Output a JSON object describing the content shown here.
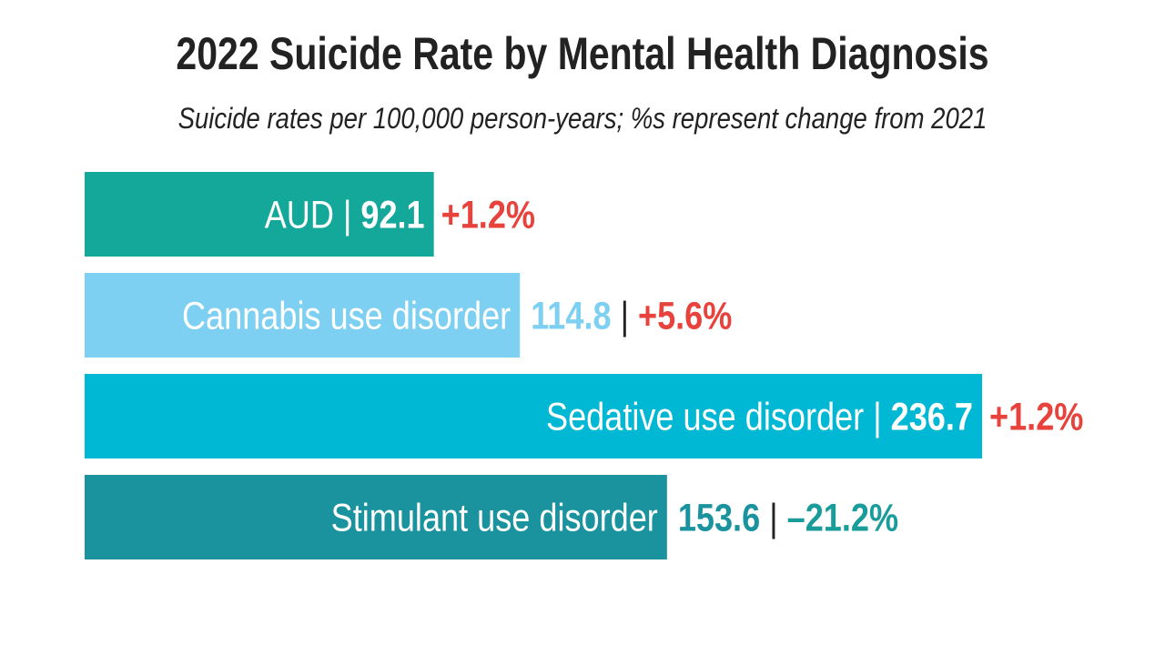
{
  "title": "2022 Suicide Rate by Mental Health Diagnosis",
  "subtitle": "Suicide rates per 100,000 person-years; %s represent change from 2021",
  "chart_data": {
    "type": "bar",
    "orientation": "horizontal",
    "title": "2022 Suicide Rate by Mental Health Diagnosis",
    "subtitle": "Suicide rates per 100,000 person-years; %s represent change from 2021",
    "categories": [
      "AUD",
      "Cannabis use disorder",
      "Sedative use disorder",
      "Stimulant use disorder"
    ],
    "values": [
      92.1,
      114.8,
      236.7,
      153.6
    ],
    "value_labels": [
      "92.1",
      "114.8",
      "236.7",
      "153.6"
    ],
    "change_labels": [
      "+1.2%",
      "+5.6%",
      "+1.2%",
      "–21.2%"
    ],
    "bar_colors": [
      "#14a89b",
      "#7dd0f1",
      "#00b8d4",
      "#1a939f"
    ],
    "change_colors": [
      "#e8423c",
      "#e8423c",
      "#e8423c",
      "#1a9c9a"
    ],
    "xlim": [
      0,
      236.7
    ],
    "grid": false,
    "legend": "none"
  }
}
